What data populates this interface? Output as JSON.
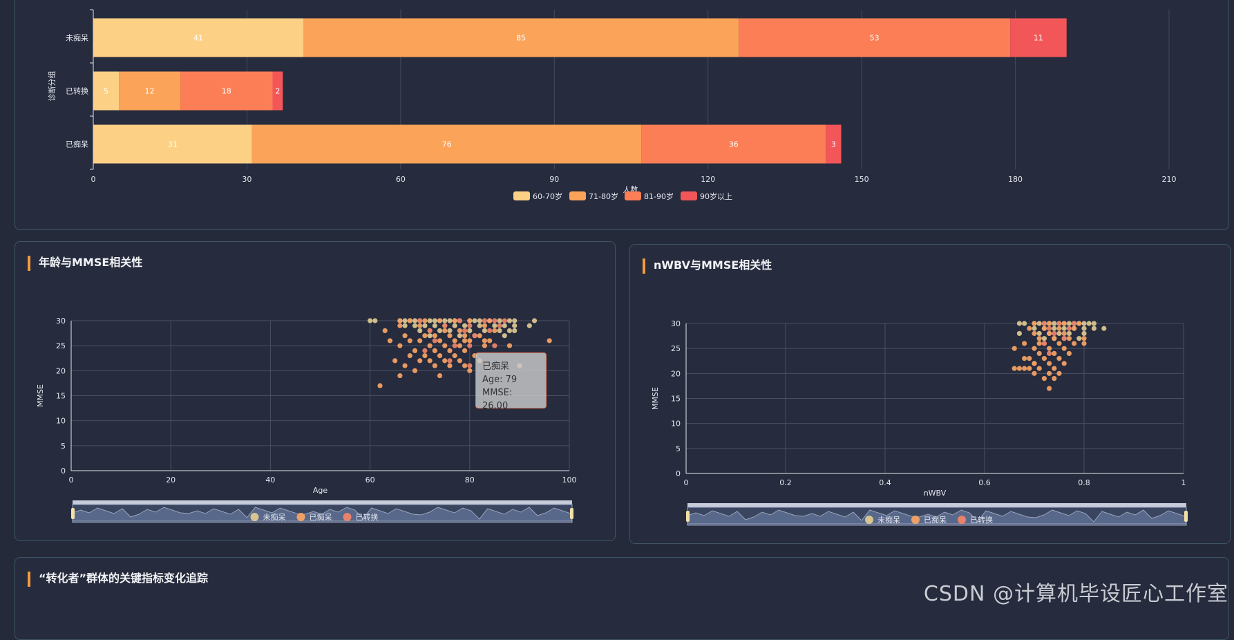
{
  "panels": {
    "scatter_age_title": "年龄与MMSE相关性",
    "scatter_nwbv_title": "nWBV与MMSE相关性",
    "tracking_title": "“转化者”群体的关键指标变化追踪"
  },
  "tooltip": {
    "group": "已痴呆",
    "line1": "Age: 79",
    "line2": "MMSE: 26.00"
  },
  "watermark": "CSDN @计算机毕设匠心工作室",
  "colors": {
    "age_60_70": "#fcd186",
    "age_71_80": "#fca35a",
    "age_81_90": "#fc7e56",
    "age_90_plus": "#f35658",
    "scatter_nondemented": "#d8c48f",
    "scatter_demented": "#f0a064",
    "scatter_converted": "#e8826a"
  },
  "chart_data": [
    {
      "type": "bar",
      "stacked": true,
      "orientation": "horizontal",
      "categories": [
        "未痴呆",
        "已转换",
        "已痴呆"
      ],
      "series": [
        {
          "name": "60-70岁",
          "values": [
            41,
            5,
            31
          ]
        },
        {
          "name": "71-80岁",
          "values": [
            85,
            12,
            76
          ]
        },
        {
          "name": "81-90岁",
          "values": [
            53,
            18,
            36
          ]
        },
        {
          "name": "90岁以上",
          "values": [
            11,
            2,
            3
          ]
        }
      ],
      "xlabel": "人数",
      "ylabel": "诊断分组",
      "xlim": [
        0,
        210
      ],
      "xticks": [
        0,
        30,
        60,
        90,
        120,
        150,
        180,
        210
      ],
      "legend": "bottom-center",
      "grid": true
    },
    {
      "type": "scatter",
      "title": "年龄与MMSE相关性",
      "xlabel": "Age",
      "ylabel": "MMSE",
      "xlim": [
        0,
        100
      ],
      "ylim": [
        0,
        30
      ],
      "xticks": [
        0,
        20,
        40,
        60,
        80,
        100
      ],
      "yticks": [
        0,
        5,
        10,
        15,
        20,
        25,
        30
      ],
      "legend": "bottom-center",
      "grid": true,
      "series": [
        {
          "name": "未痴呆",
          "points": [
            [
              60,
              30
            ],
            [
              61,
              30
            ],
            [
              66,
              30
            ],
            [
              67,
              30
            ],
            [
              68,
              30
            ],
            [
              69,
              30
            ],
            [
              70,
              30
            ],
            [
              72,
              30
            ],
            [
              73,
              30
            ],
            [
              74,
              30
            ],
            [
              75,
              30
            ],
            [
              76,
              30
            ],
            [
              77,
              30
            ],
            [
              78,
              30
            ],
            [
              80,
              30
            ],
            [
              81,
              30
            ],
            [
              82,
              30
            ],
            [
              84,
              30
            ],
            [
              86,
              30
            ],
            [
              88,
              30
            ],
            [
              89,
              30
            ],
            [
              93,
              30
            ],
            [
              67,
              29
            ],
            [
              69,
              29
            ],
            [
              71,
              29
            ],
            [
              73,
              29
            ],
            [
              75,
              29
            ],
            [
              77,
              29
            ],
            [
              79,
              29
            ],
            [
              82,
              29
            ],
            [
              85,
              29
            ],
            [
              87,
              29
            ],
            [
              89,
              29
            ],
            [
              92,
              29
            ],
            [
              70,
              28
            ],
            [
              74,
              28
            ],
            [
              76,
              28
            ],
            [
              80,
              28
            ],
            [
              83,
              28
            ],
            [
              86,
              28
            ],
            [
              88,
              28
            ],
            [
              89,
              28
            ],
            [
              72,
              27
            ],
            [
              78,
              27
            ],
            [
              81,
              27
            ],
            [
              87,
              27
            ]
          ]
        },
        {
          "name": "已痴呆",
          "points": [
            [
              66,
              30
            ],
            [
              68,
              30
            ],
            [
              71,
              30
            ],
            [
              74,
              30
            ],
            [
              77,
              30
            ],
            [
              80,
              30
            ],
            [
              84,
              30
            ],
            [
              63,
              28
            ],
            [
              66,
              29
            ],
            [
              70,
              29
            ],
            [
              72,
              28
            ],
            [
              75,
              28
            ],
            [
              78,
              28
            ],
            [
              83,
              29
            ],
            [
              85,
              28
            ],
            [
              67,
              27
            ],
            [
              71,
              27
            ],
            [
              73,
              27
            ],
            [
              76,
              27
            ],
            [
              79,
              27
            ],
            [
              82,
              27
            ],
            [
              84,
              26
            ],
            [
              68,
              26
            ],
            [
              70,
              26
            ],
            [
              74,
              26
            ],
            [
              77,
              26
            ],
            [
              80,
              26
            ],
            [
              83,
              26
            ],
            [
              64,
              26
            ],
            [
              66,
              25
            ],
            [
              72,
              25
            ],
            [
              75,
              25
            ],
            [
              78,
              25
            ],
            [
              83,
              25
            ],
            [
              88,
              25
            ],
            [
              96,
              26
            ],
            [
              69,
              24
            ],
            [
              73,
              24
            ],
            [
              76,
              24
            ],
            [
              79,
              24
            ],
            [
              68,
              23
            ],
            [
              71,
              23
            ],
            [
              74,
              23
            ],
            [
              77,
              23
            ],
            [
              81,
              23
            ],
            [
              65,
              22
            ],
            [
              70,
              22
            ],
            [
              72,
              22
            ],
            [
              75,
              22
            ],
            [
              78,
              22
            ],
            [
              82,
              22
            ],
            [
              67,
              21
            ],
            [
              73,
              21
            ],
            [
              76,
              21
            ],
            [
              79,
              21
            ],
            [
              90,
              21
            ],
            [
              69,
              20
            ],
            [
              80,
              20
            ],
            [
              74,
              19
            ],
            [
              66,
              19
            ],
            [
              62,
              17
            ],
            [
              79,
              26
            ]
          ]
        },
        {
          "name": "已转换",
          "points": [
            [
              70,
              30
            ],
            [
              78,
              30
            ],
            [
              83,
              30
            ],
            [
              85,
              30
            ],
            [
              87,
              30
            ],
            [
              75,
              29
            ],
            [
              80,
              29
            ],
            [
              86,
              29
            ],
            [
              72,
              28
            ],
            [
              79,
              28
            ],
            [
              84,
              28
            ],
            [
              81,
              27
            ],
            [
              73,
              26
            ],
            [
              77,
              25
            ],
            [
              80,
              25
            ],
            [
              85,
              25
            ],
            [
              71,
              24
            ],
            [
              76,
              22
            ],
            [
              80,
              21
            ]
          ]
        }
      ]
    },
    {
      "type": "scatter",
      "title": "nWBV与MMSE相关性",
      "xlabel": "nWBV",
      "ylabel": "MMSE",
      "xlim": [
        0,
        1
      ],
      "ylim": [
        0,
        30
      ],
      "xticks": [
        0,
        0.2,
        0.4,
        0.6,
        0.8,
        1
      ],
      "yticks": [
        0,
        5,
        10,
        15,
        20,
        25,
        30
      ],
      "legend": "bottom-center",
      "grid": true,
      "series": [
        {
          "name": "未痴呆",
          "points": [
            [
              0.67,
              30
            ],
            [
              0.68,
              30
            ],
            [
              0.7,
              30
            ],
            [
              0.71,
              30
            ],
            [
              0.72,
              30
            ],
            [
              0.73,
              30
            ],
            [
              0.74,
              30
            ],
            [
              0.75,
              30
            ],
            [
              0.76,
              30
            ],
            [
              0.77,
              30
            ],
            [
              0.78,
              30
            ],
            [
              0.79,
              30
            ],
            [
              0.8,
              30
            ],
            [
              0.81,
              30
            ],
            [
              0.82,
              30
            ],
            [
              0.7,
              29
            ],
            [
              0.72,
              29
            ],
            [
              0.74,
              29
            ],
            [
              0.76,
              29
            ],
            [
              0.78,
              29
            ],
            [
              0.8,
              29
            ],
            [
              0.82,
              29
            ],
            [
              0.84,
              29
            ],
            [
              0.67,
              28
            ],
            [
              0.71,
              28
            ],
            [
              0.73,
              28
            ],
            [
              0.75,
              28
            ],
            [
              0.77,
              28
            ],
            [
              0.8,
              28
            ],
            [
              0.72,
              27
            ],
            [
              0.74,
              27
            ],
            [
              0.76,
              27
            ],
            [
              0.79,
              27
            ]
          ]
        },
        {
          "name": "已痴呆",
          "points": [
            [
              0.7,
              30
            ],
            [
              0.73,
              30
            ],
            [
              0.76,
              30
            ],
            [
              0.79,
              30
            ],
            [
              0.69,
              29
            ],
            [
              0.72,
              29
            ],
            [
              0.75,
              29
            ],
            [
              0.78,
              29
            ],
            [
              0.7,
              28
            ],
            [
              0.73,
              28
            ],
            [
              0.76,
              28
            ],
            [
              0.71,
              27
            ],
            [
              0.74,
              27
            ],
            [
              0.77,
              27
            ],
            [
              0.8,
              27
            ],
            [
              0.68,
              26
            ],
            [
              0.72,
              26
            ],
            [
              0.75,
              26
            ],
            [
              0.78,
              26
            ],
            [
              0.66,
              25
            ],
            [
              0.7,
              25
            ],
            [
              0.73,
              25
            ],
            [
              0.76,
              25
            ],
            [
              0.71,
              24
            ],
            [
              0.74,
              24
            ],
            [
              0.77,
              24
            ],
            [
              0.69,
              23
            ],
            [
              0.72,
              23
            ],
            [
              0.75,
              23
            ],
            [
              0.68,
              23
            ],
            [
              0.7,
              22
            ],
            [
              0.73,
              22
            ],
            [
              0.76,
              22
            ],
            [
              0.66,
              21
            ],
            [
              0.67,
              21
            ],
            [
              0.68,
              21
            ],
            [
              0.69,
              21
            ],
            [
              0.71,
              21
            ],
            [
              0.74,
              21
            ],
            [
              0.7,
              20
            ],
            [
              0.73,
              20
            ],
            [
              0.75,
              20
            ],
            [
              0.72,
              19
            ],
            [
              0.74,
              19
            ],
            [
              0.73,
              17
            ],
            [
              0.7,
              22
            ],
            [
              0.71,
              26
            ],
            [
              0.8,
              26
            ]
          ]
        },
        {
          "name": "已转换",
          "points": [
            [
              0.72,
              30
            ],
            [
              0.75,
              30
            ],
            [
              0.78,
              30
            ],
            [
              0.73,
              29
            ],
            [
              0.77,
              29
            ],
            [
              0.74,
              28
            ],
            [
              0.76,
              27
            ],
            [
              0.72,
              26
            ],
            [
              0.73,
              24
            ]
          ]
        }
      ]
    }
  ]
}
